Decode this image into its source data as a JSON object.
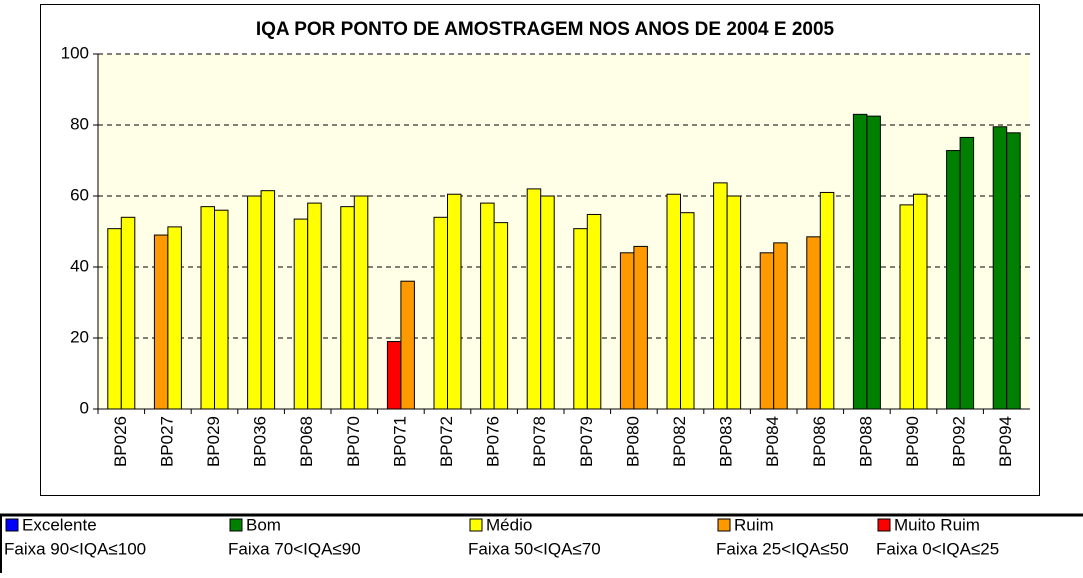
{
  "chart_data": {
    "type": "bar",
    "title": "IQA POR PONTO DE AMOSTRAGEM NOS ANOS DE 2004 E 2005",
    "categories": [
      "BP026",
      "BP027",
      "BP029",
      "BP036",
      "BP068",
      "BP070",
      "BP071",
      "BP072",
      "BP076",
      "BP078",
      "BP079",
      "BP080",
      "BP082",
      "BP083",
      "BP084",
      "BP086",
      "BP088",
      "BP090",
      "BP092",
      "BP094"
    ],
    "series": [
      {
        "values": [
          50.8,
          49,
          57,
          60,
          53.5,
          57,
          19,
          54,
          58,
          62,
          50.8,
          44,
          60.5,
          63.7,
          44,
          48.5,
          83,
          57.5,
          72.8,
          79.5
        ],
        "colors": [
          "#ffff00",
          "#ff9900",
          "#ffff00",
          "#ffff00",
          "#ffff00",
          "#ffff00",
          "#ff0000",
          "#ffff00",
          "#ffff00",
          "#ffff00",
          "#ffff00",
          "#ff9900",
          "#ffff00",
          "#ffff00",
          "#ff9900",
          "#ff9900",
          "#008000",
          "#ffff00",
          "#008000",
          "#008000"
        ]
      },
      {
        "values": [
          54,
          51.3,
          56,
          61.5,
          58,
          60,
          36,
          60.5,
          52.5,
          60,
          54.8,
          45.8,
          55.3,
          60,
          46.8,
          61,
          82.5,
          60.5,
          76.5,
          77.8
        ],
        "colors": [
          "#ffff00",
          "#ffff00",
          "#ffff00",
          "#ffff00",
          "#ffff00",
          "#ffff00",
          "#ff9900",
          "#ffff00",
          "#ffff00",
          "#ffff00",
          "#ffff00",
          "#ff9900",
          "#ffff00",
          "#ffff00",
          "#ff9900",
          "#ffff00",
          "#008000",
          "#ffff00",
          "#008000",
          "#008000"
        ]
      }
    ],
    "ylim": [
      0,
      100
    ],
    "yticks": [
      0,
      20,
      40,
      60,
      80,
      100
    ],
    "grid": true,
    "plot_background": "#ffffe8",
    "legend": [
      {
        "label": "Excelente",
        "range": "Faixa 90<IQA≤100",
        "color": "#0000ff"
      },
      {
        "label": "Bom",
        "range": "Faixa 70<IQA≤90",
        "color": "#008000"
      },
      {
        "label": "Médio",
        "range": "Faixa 50<IQA≤70",
        "color": "#ffff00"
      },
      {
        "label": "Ruim",
        "range": "Faixa 25<IQA≤50",
        "color": "#ff9900"
      },
      {
        "label": "Muito Ruim",
        "range": "Faixa 0<IQA≤25",
        "color": "#ff0000"
      }
    ]
  }
}
